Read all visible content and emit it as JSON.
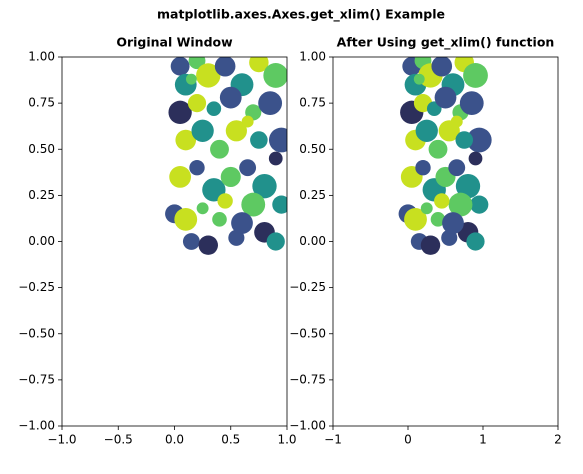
{
  "title": "matplotlib.axes.Axes.get_xlim() Example",
  "chart_data": [
    {
      "type": "scatter",
      "title": "Original Window",
      "x": [
        0.05,
        0.1,
        0.2,
        0.3,
        0.45,
        0.6,
        0.75,
        0.9,
        0.05,
        0.2,
        0.35,
        0.5,
        0.7,
        0.85,
        0.95,
        0.1,
        0.25,
        0.4,
        0.55,
        0.75,
        0.9,
        0.05,
        0.2,
        0.35,
        0.5,
        0.65,
        0.8,
        0.95,
        0.0,
        0.1,
        0.15,
        0.3,
        0.4,
        0.55,
        0.7,
        0.8,
        0.9,
        0.6,
        0.45,
        0.25,
        0.65,
        0.15
      ],
      "values": [
        0.95,
        0.85,
        0.98,
        0.9,
        0.95,
        0.85,
        0.97,
        0.9,
        0.7,
        0.75,
        0.72,
        0.78,
        0.7,
        0.75,
        0.55,
        0.55,
        0.6,
        0.5,
        0.6,
        0.55,
        0.45,
        0.35,
        0.4,
        0.28,
        0.35,
        0.4,
        0.3,
        0.2,
        0.15,
        0.12,
        0.0,
        -0.02,
        0.12,
        0.02,
        0.2,
        0.05,
        0.0,
        0.1,
        0.22,
        0.18,
        0.65,
        0.88
      ],
      "sizes": [
        150,
        200,
        120,
        250,
        180,
        220,
        160,
        260,
        230,
        140,
        90,
        200,
        110,
        240,
        260,
        180,
        210,
        150,
        190,
        130,
        80,
        200,
        100,
        230,
        170,
        120,
        250,
        140,
        150,
        220,
        120,
        160,
        90,
        110,
        240,
        180,
        140,
        200,
        100,
        60,
        60,
        50
      ],
      "colors": [
        "#3b528b",
        "#21918c",
        "#5ec962",
        "#c8e020",
        "#3b528b",
        "#21918c",
        "#c8e020",
        "#5ec962",
        "#2c2f5b",
        "#c8e020",
        "#21918c",
        "#3b528b",
        "#5ec962",
        "#3b528b",
        "#3b528b",
        "#c8e020",
        "#21918c",
        "#5ec962",
        "#c8e020",
        "#21918c",
        "#2c2f5b",
        "#c8e020",
        "#3b528b",
        "#21918c",
        "#5ec962",
        "#3b528b",
        "#21918c",
        "#21918c",
        "#3b528b",
        "#c8e020",
        "#3b528b",
        "#2c2f5b",
        "#5ec962",
        "#3b528b",
        "#5ec962",
        "#2c2f5b",
        "#21918c",
        "#3b528b",
        "#c8e020",
        "#5ec962",
        "#c8e020",
        "#5ec962"
      ],
      "xlim": [
        -1,
        1
      ],
      "xticks": [
        {
          "value": -1,
          "label": "−1.0"
        },
        {
          "value": -0.5,
          "label": "−0.5"
        },
        {
          "value": 0,
          "label": "0.0"
        },
        {
          "value": 0.5,
          "label": "0.5"
        },
        {
          "value": 1,
          "label": "1.0"
        }
      ],
      "ylim": [
        -1,
        1
      ],
      "yticks": [
        {
          "value": -1,
          "label": "−1.00"
        },
        {
          "value": -0.75,
          "label": "−0.75"
        },
        {
          "value": -0.5,
          "label": "−0.50"
        },
        {
          "value": -0.25,
          "label": "−0.25"
        },
        {
          "value": 0,
          "label": "0.00"
        },
        {
          "value": 0.25,
          "label": "0.25"
        },
        {
          "value": 0.5,
          "label": "0.50"
        },
        {
          "value": 0.75,
          "label": "0.75"
        },
        {
          "value": 1,
          "label": "1.00"
        }
      ]
    },
    {
      "type": "scatter",
      "title": "After Using get_xlim() function",
      "x": [
        0.05,
        0.1,
        0.2,
        0.3,
        0.45,
        0.6,
        0.75,
        0.9,
        0.05,
        0.2,
        0.35,
        0.5,
        0.7,
        0.85,
        0.95,
        0.1,
        0.25,
        0.4,
        0.55,
        0.75,
        0.9,
        0.05,
        0.2,
        0.35,
        0.5,
        0.65,
        0.8,
        0.95,
        0.0,
        0.1,
        0.15,
        0.3,
        0.4,
        0.55,
        0.7,
        0.8,
        0.9,
        0.6,
        0.45,
        0.25,
        0.65,
        0.15
      ],
      "values": [
        0.95,
        0.85,
        0.98,
        0.9,
        0.95,
        0.85,
        0.97,
        0.9,
        0.7,
        0.75,
        0.72,
        0.78,
        0.7,
        0.75,
        0.55,
        0.55,
        0.6,
        0.5,
        0.6,
        0.55,
        0.45,
        0.35,
        0.4,
        0.28,
        0.35,
        0.4,
        0.3,
        0.2,
        0.15,
        0.12,
        0.0,
        -0.02,
        0.12,
        0.02,
        0.2,
        0.05,
        0.0,
        0.1,
        0.22,
        0.18,
        0.65,
        0.88
      ],
      "sizes": [
        150,
        200,
        120,
        250,
        180,
        220,
        160,
        260,
        230,
        140,
        90,
        200,
        110,
        240,
        260,
        180,
        210,
        150,
        190,
        130,
        80,
        200,
        100,
        230,
        170,
        120,
        250,
        140,
        150,
        220,
        120,
        160,
        90,
        110,
        240,
        180,
        140,
        200,
        100,
        60,
        60,
        50
      ],
      "colors": [
        "#3b528b",
        "#21918c",
        "#5ec962",
        "#c8e020",
        "#3b528b",
        "#21918c",
        "#c8e020",
        "#5ec962",
        "#2c2f5b",
        "#c8e020",
        "#21918c",
        "#3b528b",
        "#5ec962",
        "#3b528b",
        "#3b528b",
        "#c8e020",
        "#21918c",
        "#5ec962",
        "#c8e020",
        "#21918c",
        "#2c2f5b",
        "#c8e020",
        "#3b528b",
        "#21918c",
        "#5ec962",
        "#3b528b",
        "#21918c",
        "#21918c",
        "#3b528b",
        "#c8e020",
        "#3b528b",
        "#2c2f5b",
        "#5ec962",
        "#3b528b",
        "#5ec962",
        "#2c2f5b",
        "#21918c",
        "#3b528b",
        "#c8e020",
        "#5ec962",
        "#c8e020",
        "#5ec962"
      ],
      "xlim": [
        -1,
        2
      ],
      "xticks": [
        {
          "value": -1,
          "label": "−1"
        },
        0,
        1,
        2
      ],
      "ylim": [
        -1,
        1
      ],
      "yticks": [
        {
          "value": -1,
          "label": "−1.00"
        },
        {
          "value": -0.75,
          "label": "−0.75"
        },
        {
          "value": -0.5,
          "label": "−0.50"
        },
        {
          "value": -0.25,
          "label": "−0.25"
        },
        {
          "value": 0,
          "label": "0.00"
        },
        {
          "value": 0.25,
          "label": "0.25"
        },
        {
          "value": 0.5,
          "label": "0.50"
        },
        {
          "value": 0.75,
          "label": "0.75"
        },
        {
          "value": 1,
          "label": "1.00"
        }
      ]
    }
  ]
}
